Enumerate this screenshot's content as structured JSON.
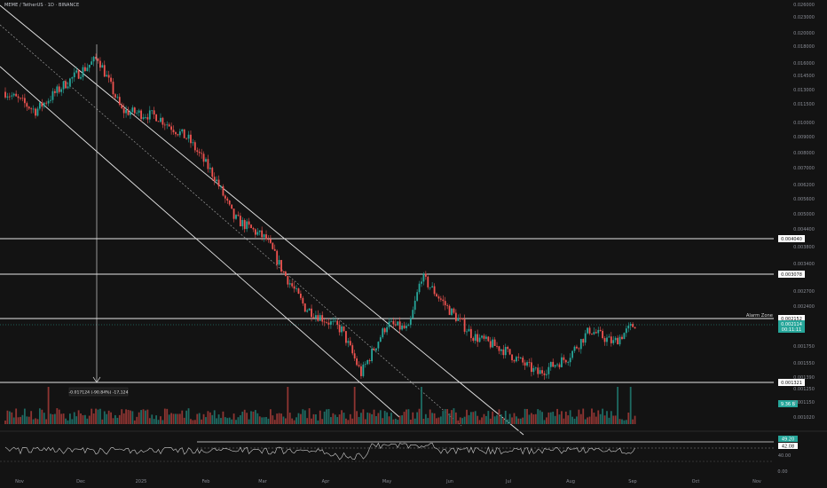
{
  "header": {
    "symbol_title": "MEME / TetherUS · 1D · BINANCE"
  },
  "colors": {
    "background": "#131313",
    "up": "#26a69a",
    "down": "#ef5350",
    "line": "#e6e6e6",
    "axis_text": "#8a8d96",
    "current_price_tag": "#26a69a",
    "rsi_line": "#cfcfcf"
  },
  "annotations": {
    "alarm_zone": "Alarm Zone",
    "measure": "-0.017124 (-90.84%) -17,124",
    "rsi_level_a": "49.20",
    "rsi_level_b": "42.08",
    "rsi_tick_mid": "40.00",
    "rsi_tick_low": "0.00",
    "volume_tag": "9.36 B",
    "price_tag_main": "0.002114",
    "price_tag_timer": "00:11:11",
    "level_tags": [
      "0.004040",
      "0.003078",
      "0.002152",
      "0.001321"
    ]
  },
  "chart_data": [
    {
      "type": "candlestick",
      "title": "MEME / TetherUS · 1D · BINANCE",
      "scale": "log",
      "x_tick_labels": [
        "Nov",
        "Dec",
        "2025",
        "Feb",
        "Mar",
        "Apr",
        "May",
        "Jun",
        "Jul",
        "Aug",
        "Sep",
        "Oct",
        "Nov"
      ],
      "y_tick_labels": [
        "0.026000",
        "0.023000",
        "0.020000",
        "0.018000",
        "0.016000",
        "0.014500",
        "0.013000",
        "0.011500",
        "0.010000",
        "0.009000",
        "0.008000",
        "0.007000",
        "0.006200",
        "0.005600",
        "0.005000",
        "0.004400",
        "0.003800",
        "0.003400",
        "0.002700",
        "0.002400",
        "0.001750",
        "0.001550",
        "0.001390",
        "0.001250",
        "0.001150",
        "0.001020"
      ],
      "ylim": [
        0.00098,
        0.028
      ],
      "horizontal_levels": [
        0.00404,
        0.003078,
        0.002152,
        0.001321
      ],
      "last_price": 0.002114,
      "trend_channel": "descending parallel channel from Nov 2024 to Aug 2025 with dashed midline",
      "approx_path": [
        {
          "date": "Oct 27",
          "close": 0.014
        },
        {
          "date": "Nov 10",
          "close": 0.012
        },
        {
          "date": "Nov 24",
          "close": 0.015
        },
        {
          "date": "Dec 09",
          "close": 0.0185
        },
        {
          "date": "Dec 20",
          "close": 0.012
        },
        {
          "date": "Jan 05",
          "close": 0.0115
        },
        {
          "date": "Jan 20",
          "close": 0.0095
        },
        {
          "date": "Feb 01",
          "close": 0.007
        },
        {
          "date": "Feb 10",
          "close": 0.005
        },
        {
          "date": "Feb 25",
          "close": 0.0042
        },
        {
          "date": "Mar 05",
          "close": 0.0032
        },
        {
          "date": "Mar 15",
          "close": 0.0024
        },
        {
          "date": "Apr 01",
          "close": 0.002
        },
        {
          "date": "Apr 10",
          "close": 0.0014
        },
        {
          "date": "Apr 22",
          "close": 0.0021
        },
        {
          "date": "May 02",
          "close": 0.002
        },
        {
          "date": "May 08",
          "close": 0.0031
        },
        {
          "date": "May 20",
          "close": 0.0024
        },
        {
          "date": "Jun 01",
          "close": 0.0019
        },
        {
          "date": "Jun 15",
          "close": 0.0017
        },
        {
          "date": "Jul 01",
          "close": 0.0014
        },
        {
          "date": "Jul 15",
          "close": 0.0016
        },
        {
          "date": "Jul 25",
          "close": 0.002
        },
        {
          "date": "Aug 05",
          "close": 0.0018
        },
        {
          "date": "Aug 15",
          "close": 0.0021
        }
      ],
      "volume_last": "9.36 B"
    },
    {
      "type": "line",
      "title": "",
      "y_tick_labels": [
        "49.20",
        "42.08",
        "40.00",
        "0.00"
      ],
      "current_values": [
        49.2,
        42.08
      ]
    }
  ]
}
